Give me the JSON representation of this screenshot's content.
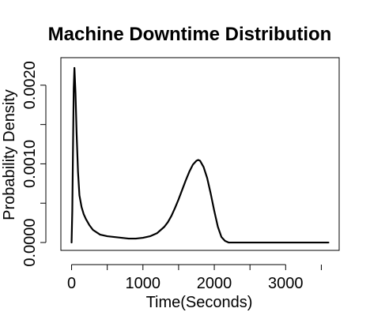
{
  "chart_data": {
    "type": "line",
    "title": "Machine Downtime Distribution",
    "xlabel": "Time(Seconds)",
    "ylabel": "Probability Density",
    "xlim": [
      -150,
      3750
    ],
    "ylim": [
      -0.0001,
      0.00235
    ],
    "x_ticks": [
      0,
      1000,
      2000,
      3000
    ],
    "x_tick_labels": [
      "0",
      "1000",
      "2000",
      "3000"
    ],
    "y_ticks": [
      0,
      0.0005,
      0.001,
      0.0015,
      0.002
    ],
    "y_tick_labels": [
      "0.0000",
      "",
      "0.0010",
      "",
      "0.0020"
    ],
    "grid": false,
    "legend": "none",
    "series": [
      {
        "x": [
          0,
          10,
          20,
          30,
          40,
          55,
          70,
          90,
          110,
          140,
          170,
          200,
          250,
          300,
          400,
          500,
          600,
          700,
          800,
          900,
          1000,
          1100,
          1200,
          1300,
          1350,
          1400,
          1450,
          1500,
          1550,
          1600,
          1650,
          1700,
          1750,
          1775,
          1800,
          1850,
          1900,
          1950,
          2000,
          2050,
          2100,
          2150,
          2200,
          2300,
          2500,
          3000,
          3500,
          3600
        ],
        "y": [
          0.0,
          0.0004,
          0.0012,
          0.00196,
          0.00222,
          0.0019,
          0.0014,
          0.0009,
          0.0006,
          0.00045,
          0.00036,
          0.0003,
          0.00022,
          0.00016,
          0.0001,
          8e-05,
          7e-05,
          6e-05,
          5e-05,
          5e-05,
          6e-05,
          8e-05,
          0.00012,
          0.0002,
          0.00026,
          0.00034,
          0.00044,
          0.00055,
          0.00067,
          0.00079,
          0.0009,
          0.00099,
          0.00104,
          0.00105,
          0.00104,
          0.00096,
          0.00082,
          0.00062,
          0.0004,
          0.0002,
          7e-05,
          2e-05,
          0.0,
          0.0,
          0.0,
          0.0,
          0.0,
          0.0
        ]
      }
    ],
    "colors": {
      "line": "#000000",
      "axis": "#000000",
      "background": "#ffffff"
    }
  }
}
